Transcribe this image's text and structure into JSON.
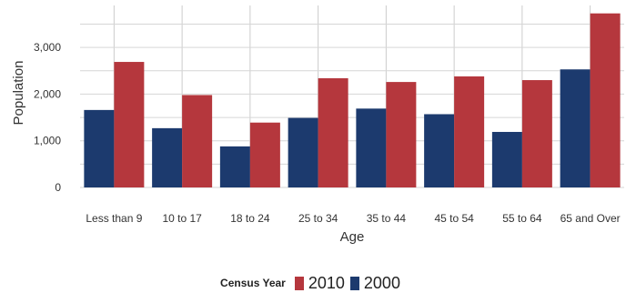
{
  "chart_data": {
    "type": "bar",
    "xlabel": "Age",
    "ylabel": "Population",
    "categories": [
      "Less than 9",
      "10 to 17",
      "18 to 24",
      "25 to 34",
      "35 to 44",
      "45 to 54",
      "55 to 64",
      "65 and Over"
    ],
    "series": [
      {
        "name": "2000",
        "color": "#1c3a6e",
        "values": [
          1660,
          1270,
          880,
          1490,
          1690,
          1570,
          1190,
          2530
        ]
      },
      {
        "name": "2010",
        "color": "#b5373d",
        "values": [
          2690,
          1980,
          1390,
          2340,
          2260,
          2380,
          2300,
          3730
        ]
      }
    ],
    "ylim": [
      0,
      3900
    ],
    "yticks": [
      0,
      1000,
      2000,
      3000
    ],
    "ytick_labels": [
      "0",
      "1,000",
      "2,000",
      "3,000"
    ],
    "grid": true,
    "legend": {
      "title": "Census Year",
      "position": "bottom",
      "order": [
        "2010",
        "2000"
      ]
    }
  }
}
